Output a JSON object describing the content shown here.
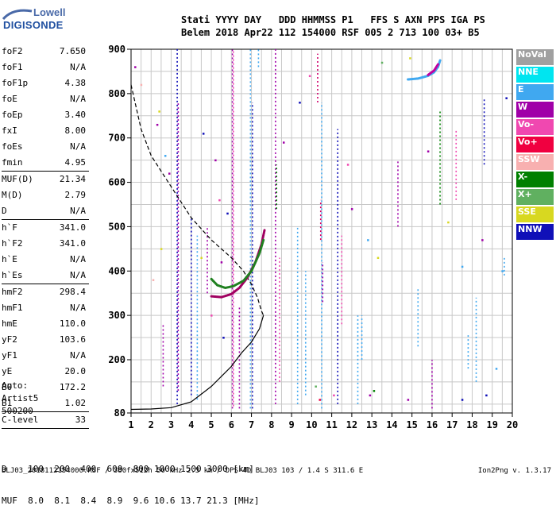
{
  "logo": {
    "brand_line1": "Lowell",
    "brand_line2": "DIGISONDE"
  },
  "header": {
    "row1": "Stati YYYY DAY   DDD HHMMSS P1   FFS S AXN PPS IGA PS",
    "row2": "Belem 2018 Apr22 112 154000 RSF 005 2 713 100 03+ B5"
  },
  "params": [
    {
      "name": "foF2",
      "value": "7.650"
    },
    {
      "name": "foF1",
      "value": "N/A"
    },
    {
      "name": "foF1p",
      "value": "4.38"
    },
    {
      "name": "foE",
      "value": "N/A"
    },
    {
      "name": "foEp",
      "value": "3.40"
    },
    {
      "name": "fxI",
      "value": "8.00"
    },
    {
      "name": "foEs",
      "value": "N/A"
    },
    {
      "name": "fmin",
      "value": "4.95"
    },
    {
      "sep": true
    },
    {
      "name": "MUF(D)",
      "value": "21.34"
    },
    {
      "name": "M(D)",
      "value": "2.79"
    },
    {
      "name": "D",
      "value": "N/A"
    },
    {
      "sep": true
    },
    {
      "name": "h`F",
      "value": "341.0"
    },
    {
      "name": "h`F2",
      "value": "341.0"
    },
    {
      "name": "h`E",
      "value": "N/A"
    },
    {
      "name": "h`Es",
      "value": "N/A"
    },
    {
      "sep": true
    },
    {
      "name": "hmF2",
      "value": "298.4"
    },
    {
      "name": "hmF1",
      "value": "N/A"
    },
    {
      "name": "hmE",
      "value": "110.0"
    },
    {
      "name": "yF2",
      "value": "103.6"
    },
    {
      "name": "yF1",
      "value": "N/A"
    },
    {
      "name": "yE",
      "value": "20.0"
    },
    {
      "name": "B0",
      "value": "172.2"
    },
    {
      "name": "B1",
      "value": "1.02"
    },
    {
      "sep": true
    },
    {
      "name": "C-level",
      "value": "33"
    },
    {
      "sep": true
    }
  ],
  "auto_block": [
    "Auto:",
    "Artist5",
    "500200"
  ],
  "legend": [
    {
      "label": "NoVal",
      "bg": "#a0a0a0",
      "fg": "#ffffff"
    },
    {
      "label": "NNE",
      "bg": "#00e5f0",
      "fg": "#ffffff"
    },
    {
      "label": "E",
      "bg": "#40a8f0",
      "fg": "#ffffff"
    },
    {
      "label": "W",
      "bg": "#a000a8",
      "fg": "#ffffff"
    },
    {
      "label": "Vo-",
      "bg": "#f048b0",
      "fg": "#ffffff"
    },
    {
      "label": "Vo+",
      "bg": "#f00040",
      "fg": "#ffffff"
    },
    {
      "label": "SSW",
      "bg": "#f8b0b0",
      "fg": "#ffffff"
    },
    {
      "label": "X-",
      "bg": "#008000",
      "fg": "#ffffff"
    },
    {
      "label": "X+",
      "bg": "#60b060",
      "fg": "#ffffff"
    },
    {
      "label": "SSE",
      "bg": "#d8d820",
      "fg": "#ffffff"
    },
    {
      "label": "NNW",
      "bg": "#1010b8",
      "fg": "#ffffff"
    }
  ],
  "dmuf": {
    "row1": "D    100  200  400  600  800 1000 1500 3000 [km]",
    "row2": "MUF  8.0  8.1  8.4  8.9  9.6 10.6 13.7 21.3 [MHz]"
  },
  "footer": "BLJ03_2018112154000.RSF / 380fx512h 50 kHz 2.5 km / DPS-4D BLJ03 103 / 1.4 S 311.6 E",
  "version": "Ion2Png v. 1.3.17",
  "chart_data": {
    "type": "scatter",
    "xlabel": "",
    "ylabel": "",
    "xlim": [
      1,
      20
    ],
    "ylim": [
      80,
      900
    ],
    "xticks": [
      1,
      2,
      3,
      4,
      5,
      6,
      7,
      8,
      9,
      10,
      11,
      12,
      13,
      14,
      15,
      16,
      17,
      18,
      19,
      20
    ],
    "yticks": [
      80,
      200,
      300,
      400,
      500,
      600,
      700,
      800,
      900
    ],
    "grid": true,
    "series": [
      {
        "kind": "line",
        "style": "dashed",
        "color": "#000000",
        "points": [
          [
            1.0,
            820
          ],
          [
            1.5,
            720
          ],
          [
            2.0,
            660
          ],
          [
            3.0,
            590
          ],
          [
            4.0,
            520
          ],
          [
            5.0,
            470
          ],
          [
            6.0,
            430
          ],
          [
            6.6,
            400
          ],
          [
            7.0,
            370
          ],
          [
            7.3,
            340
          ],
          [
            7.5,
            310
          ],
          [
            7.6,
            300
          ]
        ]
      },
      {
        "kind": "line",
        "style": "solid",
        "color": "#000000",
        "points": [
          [
            1.0,
            88
          ],
          [
            2.0,
            89
          ],
          [
            3.0,
            92
          ],
          [
            4.0,
            105
          ],
          [
            5.0,
            140
          ],
          [
            6.0,
            185
          ],
          [
            6.5,
            215
          ],
          [
            7.0,
            240
          ],
          [
            7.4,
            270
          ],
          [
            7.6,
            300
          ]
        ]
      },
      {
        "kind": "trace",
        "color": "#a00060",
        "points": [
          [
            5.0,
            343
          ],
          [
            5.5,
            341
          ],
          [
            6.0,
            348
          ],
          [
            6.4,
            362
          ],
          [
            6.8,
            385
          ],
          [
            7.2,
            420
          ],
          [
            7.5,
            460
          ],
          [
            7.65,
            492
          ]
        ]
      },
      {
        "kind": "trace",
        "color": "#208020",
        "points": [
          [
            5.0,
            382
          ],
          [
            5.3,
            368
          ],
          [
            5.7,
            362
          ],
          [
            6.1,
            366
          ],
          [
            6.6,
            378
          ],
          [
            7.0,
            400
          ],
          [
            7.4,
            440
          ],
          [
            7.6,
            470
          ]
        ]
      },
      {
        "kind": "trace",
        "color": "#40a8f0",
        "points": [
          [
            14.8,
            832
          ],
          [
            15.3,
            834
          ],
          [
            15.8,
            840
          ],
          [
            16.1,
            848
          ],
          [
            16.3,
            860
          ],
          [
            16.4,
            875
          ]
        ]
      },
      {
        "kind": "trace",
        "color": "#c000a0",
        "points": [
          [
            15.8,
            842
          ],
          [
            16.1,
            852
          ],
          [
            16.3,
            866
          ]
        ]
      }
    ],
    "echo_columns": [
      {
        "x": 3.3,
        "y0": 100,
        "y1": 900,
        "color": "#1010b8"
      },
      {
        "x": 3.35,
        "y0": 130,
        "y1": 780,
        "color": "#a000a8"
      },
      {
        "x": 2.6,
        "y0": 140,
        "y1": 280,
        "color": "#a000a8"
      },
      {
        "x": 4.0,
        "y0": 120,
        "y1": 520,
        "color": "#1010b8"
      },
      {
        "x": 4.3,
        "y0": 110,
        "y1": 480,
        "color": "#40a8f0"
      },
      {
        "x": 4.8,
        "y0": 350,
        "y1": 500,
        "color": "#a000a8"
      },
      {
        "x": 6.05,
        "y0": 90,
        "y1": 900,
        "color": "#a000a8"
      },
      {
        "x": 6.1,
        "y0": 95,
        "y1": 900,
        "color": "#f048b0"
      },
      {
        "x": 6.4,
        "y0": 90,
        "y1": 320,
        "color": "#a000a8"
      },
      {
        "x": 6.95,
        "y0": 90,
        "y1": 900,
        "color": "#40a8f0"
      },
      {
        "x": 7.05,
        "y0": 90,
        "y1": 780,
        "color": "#1010b8"
      },
      {
        "x": 7.35,
        "y0": 860,
        "y1": 900,
        "color": "#40a8f0"
      },
      {
        "x": 8.2,
        "y0": 100,
        "y1": 900,
        "color": "#a000a8"
      },
      {
        "x": 8.25,
        "y0": 540,
        "y1": 640,
        "color": "#008000"
      },
      {
        "x": 8.4,
        "y0": 150,
        "y1": 430,
        "color": "#f048b0"
      },
      {
        "x": 9.3,
        "y0": 100,
        "y1": 500,
        "color": "#40a8f0"
      },
      {
        "x": 9.7,
        "y0": 120,
        "y1": 400,
        "color": "#40a8f0"
      },
      {
        "x": 10.3,
        "y0": 780,
        "y1": 890,
        "color": "#d0006a"
      },
      {
        "x": 10.5,
        "y0": 90,
        "y1": 780,
        "color": "#40a8f0"
      },
      {
        "x": 10.45,
        "y0": 470,
        "y1": 560,
        "color": "#d0006a"
      },
      {
        "x": 10.55,
        "y0": 330,
        "y1": 420,
        "color": "#a000a8"
      },
      {
        "x": 11.3,
        "y0": 100,
        "y1": 720,
        "color": "#1010b8"
      },
      {
        "x": 11.5,
        "y0": 280,
        "y1": 480,
        "color": "#f048b0"
      },
      {
        "x": 12.3,
        "y0": 100,
        "y1": 300,
        "color": "#40a8f0"
      },
      {
        "x": 12.5,
        "y0": 200,
        "y1": 300,
        "color": "#40a8f0"
      },
      {
        "x": 14.3,
        "y0": 500,
        "y1": 650,
        "color": "#a000a8"
      },
      {
        "x": 15.3,
        "y0": 230,
        "y1": 360,
        "color": "#40a8f0"
      },
      {
        "x": 16.0,
        "y0": 90,
        "y1": 200,
        "color": "#a000a8"
      },
      {
        "x": 16.4,
        "y0": 550,
        "y1": 760,
        "color": "#008000"
      },
      {
        "x": 17.2,
        "y0": 560,
        "y1": 720,
        "color": "#f048b0"
      },
      {
        "x": 17.8,
        "y0": 180,
        "y1": 260,
        "color": "#40a8f0"
      },
      {
        "x": 18.2,
        "y0": 150,
        "y1": 340,
        "color": "#40a8f0"
      },
      {
        "x": 18.6,
        "y0": 640,
        "y1": 790,
        "color": "#1010b8"
      },
      {
        "x": 19.6,
        "y0": 390,
        "y1": 430,
        "color": "#40a8f0"
      }
    ],
    "scatter_points": [
      [
        1.2,
        860,
        "#a000a8"
      ],
      [
        1.5,
        820,
        "#f8b0b0"
      ],
      [
        2.4,
        760,
        "#d8d820"
      ],
      [
        2.3,
        730,
        "#a000a8"
      ],
      [
        2.7,
        660,
        "#40a8f0"
      ],
      [
        2.9,
        620,
        "#a000a8"
      ],
      [
        2.5,
        450,
        "#d8d820"
      ],
      [
        2.1,
        380,
        "#f8b0b0"
      ],
      [
        4.6,
        710,
        "#1010b8"
      ],
      [
        5.2,
        650,
        "#a000a8"
      ],
      [
        5.4,
        560,
        "#f048b0"
      ],
      [
        5.8,
        530,
        "#1010b8"
      ],
      [
        5.5,
        420,
        "#a000a8"
      ],
      [
        4.5,
        430,
        "#d8d820"
      ],
      [
        5.0,
        300,
        "#f048b0"
      ],
      [
        5.6,
        250,
        "#1010b8"
      ],
      [
        8.6,
        690,
        "#a000a8"
      ],
      [
        9.4,
        780,
        "#1010b8"
      ],
      [
        9.9,
        840,
        "#f048b0"
      ],
      [
        11.8,
        640,
        "#f048b0"
      ],
      [
        12.0,
        540,
        "#a000a8"
      ],
      [
        12.8,
        470,
        "#40a8f0"
      ],
      [
        13.3,
        430,
        "#d8d820"
      ],
      [
        13.5,
        870,
        "#60b060"
      ],
      [
        14.9,
        880,
        "#d8d820"
      ],
      [
        15.8,
        670,
        "#a000a8"
      ],
      [
        16.8,
        510,
        "#d8d820"
      ],
      [
        17.5,
        410,
        "#40a8f0"
      ],
      [
        18.5,
        470,
        "#a000a8"
      ],
      [
        19.5,
        400,
        "#40a8f0"
      ],
      [
        19.7,
        790,
        "#1010b8"
      ],
      [
        19.2,
        180,
        "#40a8f0"
      ],
      [
        13.1,
        130,
        "#008000"
      ],
      [
        10.2,
        140,
        "#60b060"
      ],
      [
        10.4,
        110,
        "#f00040"
      ],
      [
        11.1,
        120,
        "#f048b0"
      ],
      [
        12.9,
        120,
        "#a000a8"
      ],
      [
        14.8,
        110,
        "#a000a8"
      ],
      [
        17.5,
        110,
        "#1010b8"
      ],
      [
        18.7,
        120,
        "#1010b8"
      ]
    ]
  }
}
